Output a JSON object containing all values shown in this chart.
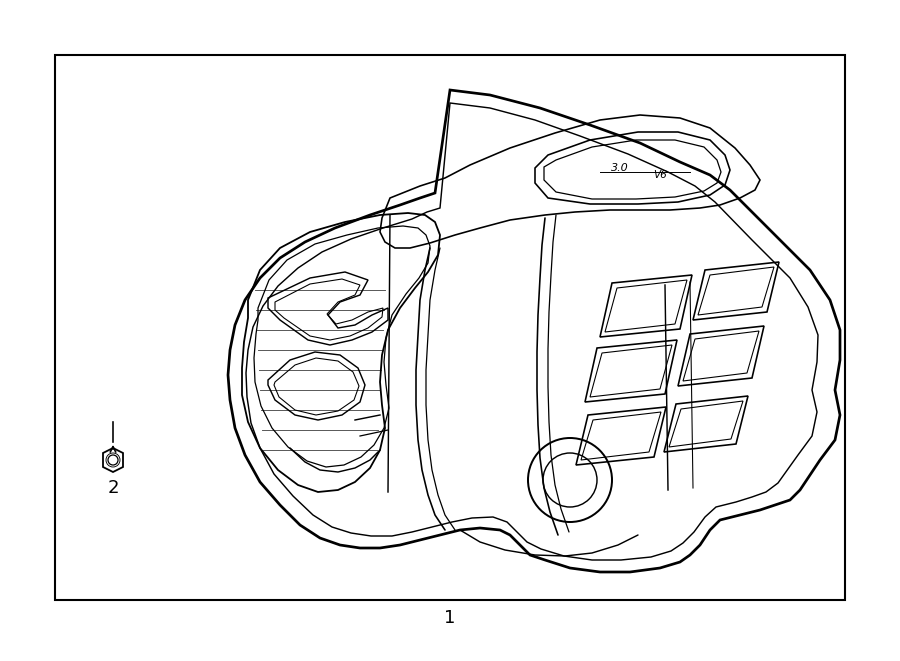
{
  "fig_width": 9.0,
  "fig_height": 6.61,
  "dpi": 100,
  "bg_color": "#ffffff",
  "border_color": "#000000",
  "line_color": "#000000",
  "border_lw": 1.5,
  "part_lw": 1.3,
  "label1_text": "1",
  "label2_text": "2",
  "font_size_labels": 13
}
